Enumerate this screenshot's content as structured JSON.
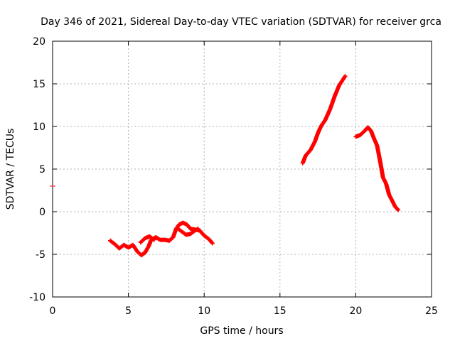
{
  "chart_data": {
    "type": "scatter",
    "title": "Day 346 of 2021, Sidereal Day-to-day VTEC variation (SDTVAR) for receiver grca",
    "xlabel": "GPS time / hours",
    "ylabel": "SDTVAR / TECUs",
    "xlim": [
      0,
      25
    ],
    "ylim": [
      -10,
      20
    ],
    "xticks": [
      0,
      5,
      10,
      15,
      20,
      25
    ],
    "yticks": [
      -10,
      -5,
      0,
      5,
      10,
      15,
      20
    ],
    "xtick_labels": [
      "0",
      "5",
      "10",
      "15",
      "20",
      "25"
    ],
    "ytick_labels": [
      "-10",
      "-5",
      "0",
      "5",
      "10",
      "15",
      "20"
    ],
    "grid": true,
    "series": [
      {
        "color": "#ff0000",
        "segments": [
          [
            [
              3.8,
              -3.4
            ],
            [
              4.1,
              -3.8
            ],
            [
              4.4,
              -4.3
            ],
            [
              4.7,
              -3.9
            ],
            [
              5.0,
              -4.2
            ],
            [
              5.3,
              -3.9
            ],
            [
              5.6,
              -4.7
            ],
            [
              5.85,
              -5.1
            ],
            [
              6.1,
              -4.8
            ],
            [
              6.35,
              -4.0
            ],
            [
              6.5,
              -3.3
            ],
            [
              6.8,
              -3.0
            ],
            [
              7.1,
              -3.3
            ],
            [
              7.4,
              -3.3
            ],
            [
              7.7,
              -3.4
            ],
            [
              7.95,
              -3.0
            ],
            [
              8.15,
              -2.0
            ],
            [
              8.35,
              -1.5
            ],
            [
              8.6,
              -1.3
            ],
            [
              8.85,
              -1.5
            ],
            [
              9.1,
              -2.0
            ],
            [
              9.4,
              -2.1
            ],
            [
              9.7,
              -2.2
            ],
            [
              10.0,
              -2.8
            ],
            [
              10.3,
              -3.2
            ],
            [
              10.55,
              -3.7
            ]
          ],
          [
            [
              5.8,
              -3.6
            ],
            [
              6.1,
              -3.1
            ],
            [
              6.4,
              -2.9
            ],
            [
              6.7,
              -3.3
            ]
          ],
          [
            [
              8.2,
              -1.9
            ],
            [
              8.5,
              -2.3
            ],
            [
              8.8,
              -2.7
            ],
            [
              9.1,
              -2.6
            ],
            [
              9.4,
              -2.2
            ],
            [
              9.6,
              -2.0
            ]
          ],
          [
            [
              16.5,
              5.7
            ],
            [
              16.7,
              6.6
            ],
            [
              17.0,
              7.2
            ],
            [
              17.3,
              8.2
            ],
            [
              17.5,
              9.2
            ],
            [
              17.7,
              10.0
            ],
            [
              18.0,
              10.8
            ],
            [
              18.3,
              12.0
            ],
            [
              18.6,
              13.5
            ],
            [
              18.9,
              14.8
            ],
            [
              19.3,
              15.9
            ]
          ],
          [
            [
              20.0,
              8.8
            ],
            [
              20.3,
              9.0
            ],
            [
              20.6,
              9.5
            ],
            [
              20.8,
              9.9
            ],
            [
              21.0,
              9.5
            ],
            [
              21.2,
              8.6
            ],
            [
              21.4,
              7.8
            ],
            [
              21.6,
              6.0
            ],
            [
              21.8,
              4.0
            ],
            [
              22.0,
              3.3
            ],
            [
              22.2,
              2.0
            ],
            [
              22.4,
              1.3
            ],
            [
              22.6,
              0.6
            ],
            [
              22.8,
              0.2
            ]
          ]
        ]
      }
    ],
    "annotations": [
      {
        "x": 0,
        "y": 3.0,
        "note": "isolated mark at left axis"
      }
    ]
  }
}
